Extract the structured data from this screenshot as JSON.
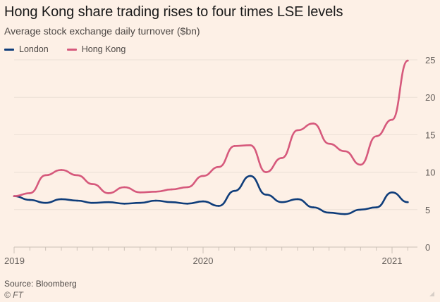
{
  "header": {
    "title": "Hong Kong share trading rises to four times LSE levels",
    "subtitle": "Average stock exchange daily turnover ($bn)"
  },
  "footer": {
    "source": "Source: Bloomberg",
    "credit": "© FT"
  },
  "chart_data": {
    "type": "line",
    "title": "Hong Kong share trading rises to four times LSE levels",
    "subtitle": "Average stock exchange daily turnover ($bn)",
    "xlabel": "",
    "ylabel": "",
    "ylim": [
      0,
      25
    ],
    "yticks": [
      0,
      5,
      10,
      15,
      20,
      25
    ],
    "ytick_labels": [
      "0",
      "5",
      "10",
      "15",
      "20",
      "25"
    ],
    "xlim": [
      "2019-01",
      "2021-03"
    ],
    "xticks": [
      "2019",
      "2020",
      "2021"
    ],
    "grid": true,
    "legend_position": "top-left",
    "x": [
      "2019-01",
      "2019-02",
      "2019-03",
      "2019-04",
      "2019-05",
      "2019-06",
      "2019-07",
      "2019-08",
      "2019-09",
      "2019-10",
      "2019-11",
      "2019-12",
      "2020-01",
      "2020-02",
      "2020-03",
      "2020-04",
      "2020-05",
      "2020-06",
      "2020-07",
      "2020-08",
      "2020-09",
      "2020-10",
      "2020-11",
      "2020-12",
      "2021-01",
      "2021-02"
    ],
    "series": [
      {
        "name": "London",
        "color": "#0f3d7a",
        "values": [
          6.8,
          6.3,
          5.9,
          6.4,
          6.2,
          5.9,
          6.0,
          5.8,
          5.9,
          6.2,
          6.0,
          5.8,
          6.1,
          5.5,
          7.5,
          9.5,
          7.0,
          6.0,
          6.4,
          5.3,
          4.6,
          4.4,
          5.0,
          5.3,
          7.3,
          6.0
        ]
      },
      {
        "name": "Hong Kong",
        "color": "#d6597c",
        "values": [
          6.8,
          7.2,
          9.6,
          10.3,
          9.6,
          8.4,
          7.2,
          8.0,
          7.3,
          7.4,
          7.7,
          8.0,
          9.5,
          10.7,
          13.5,
          13.6,
          10.0,
          11.9,
          15.6,
          16.5,
          13.8,
          12.8,
          11.0,
          14.8,
          17.0,
          24.9
        ]
      }
    ]
  }
}
